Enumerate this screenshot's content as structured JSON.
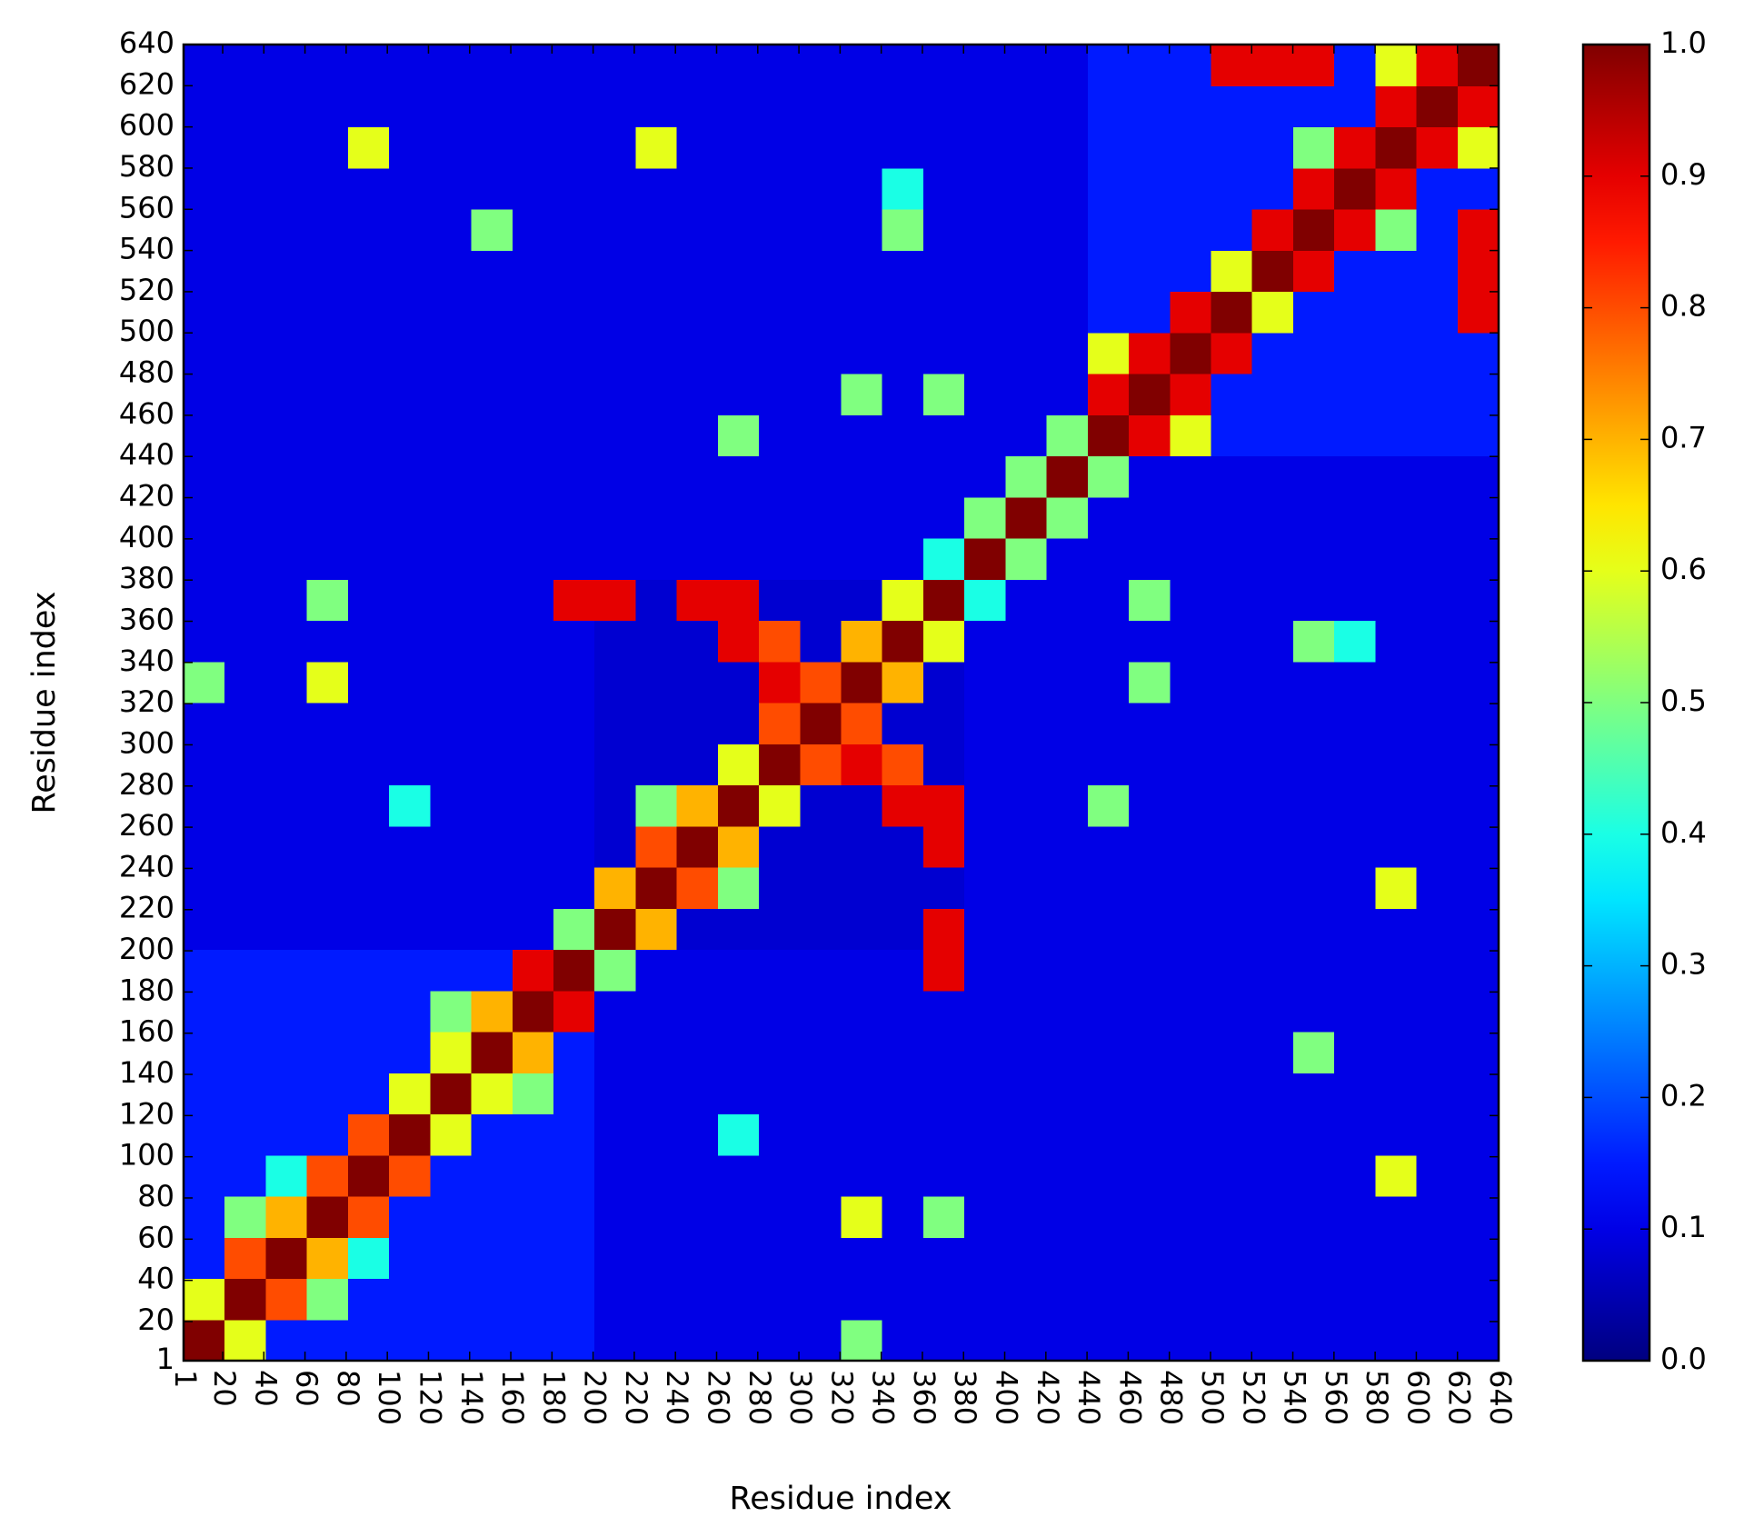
{
  "chart_data": {
    "type": "heatmap",
    "xlabel": "Residue index",
    "ylabel": "Residue index",
    "xlim": [
      1,
      640
    ],
    "ylim": [
      1,
      640
    ],
    "xticks": [
      1,
      20,
      40,
      60,
      80,
      100,
      120,
      140,
      160,
      180,
      200,
      220,
      240,
      260,
      280,
      300,
      320,
      340,
      360,
      380,
      400,
      420,
      440,
      460,
      480,
      500,
      520,
      540,
      560,
      580,
      600,
      620,
      640
    ],
    "yticks": [
      1,
      20,
      40,
      60,
      80,
      100,
      120,
      140,
      160,
      180,
      200,
      220,
      240,
      260,
      280,
      300,
      320,
      340,
      360,
      380,
      400,
      420,
      440,
      460,
      480,
      500,
      520,
      540,
      560,
      580,
      600,
      620,
      640
    ],
    "colormap": "jet",
    "colorbar": {
      "lim": [
        0,
        1
      ],
      "ticks": [
        {
          "value": 0,
          "label": "0.0"
        },
        {
          "value": 0.1,
          "label": "0.1"
        },
        {
          "value": 0.2,
          "label": "0.2"
        },
        {
          "value": 0.3,
          "label": "0.3"
        },
        {
          "value": 0.4,
          "label": "0.4"
        },
        {
          "value": 0.5,
          "label": "0.5"
        },
        {
          "value": 0.6,
          "label": "0.6"
        },
        {
          "value": 0.7,
          "label": "0.7"
        },
        {
          "value": 0.8,
          "label": "0.8"
        },
        {
          "value": 0.9,
          "label": "0.9"
        },
        {
          "value": 1,
          "label": "1.0"
        }
      ]
    },
    "z": [
      [
        1,
        0.6,
        0.15,
        0.15,
        0.15,
        0.15,
        0.15,
        0.15,
        0.15,
        0.15,
        0.1,
        0.1,
        0.1,
        0.1,
        0.1,
        0.1,
        0.5,
        0.1,
        0.1,
        0.1,
        0.1,
        0.1,
        0.1,
        0.1,
        0.1,
        0.1,
        0.1,
        0.1,
        0.1,
        0.1,
        0.1,
        0.1
      ],
      [
        0.6,
        1,
        0.8,
        0.5,
        0.15,
        0.15,
        0.15,
        0.15,
        0.15,
        0.15,
        0.1,
        0.1,
        0.1,
        0.1,
        0.1,
        0.1,
        0.1,
        0.1,
        0.1,
        0.1,
        0.1,
        0.1,
        0.1,
        0.1,
        0.1,
        0.1,
        0.1,
        0.1,
        0.1,
        0.1,
        0.1,
        0.1
      ],
      [
        0.15,
        0.8,
        1,
        0.7,
        0.4,
        0.15,
        0.15,
        0.15,
        0.15,
        0.15,
        0.1,
        0.1,
        0.1,
        0.1,
        0.1,
        0.1,
        0.1,
        0.1,
        0.1,
        0.1,
        0.1,
        0.1,
        0.1,
        0.1,
        0.1,
        0.1,
        0.1,
        0.1,
        0.1,
        0.1,
        0.1,
        0.1
      ],
      [
        0.15,
        0.5,
        0.7,
        1,
        0.8,
        0.15,
        0.15,
        0.15,
        0.15,
        0.15,
        0.1,
        0.1,
        0.1,
        0.1,
        0.1,
        0.1,
        0.6,
        0.1,
        0.5,
        0.1,
        0.1,
        0.1,
        0.1,
        0.1,
        0.1,
        0.1,
        0.1,
        0.1,
        0.1,
        0.1,
        0.1,
        0.1
      ],
      [
        0.15,
        0.15,
        0.4,
        0.8,
        1,
        0.8,
        0.15,
        0.15,
        0.15,
        0.15,
        0.1,
        0.1,
        0.1,
        0.1,
        0.1,
        0.1,
        0.1,
        0.1,
        0.1,
        0.1,
        0.1,
        0.1,
        0.1,
        0.1,
        0.1,
        0.1,
        0.1,
        0.1,
        0.1,
        0.6,
        0.1,
        0.1
      ],
      [
        0.15,
        0.15,
        0.15,
        0.15,
        0.8,
        1,
        0.6,
        0.15,
        0.15,
        0.15,
        0.1,
        0.1,
        0.1,
        0.4,
        0.1,
        0.1,
        0.1,
        0.1,
        0.1,
        0.1,
        0.1,
        0.1,
        0.1,
        0.1,
        0.1,
        0.1,
        0.1,
        0.1,
        0.1,
        0.1,
        0.1,
        0.1
      ],
      [
        0.15,
        0.15,
        0.15,
        0.15,
        0.15,
        0.6,
        1,
        0.6,
        0.5,
        0.15,
        0.1,
        0.1,
        0.1,
        0.1,
        0.1,
        0.1,
        0.1,
        0.1,
        0.1,
        0.1,
        0.1,
        0.1,
        0.1,
        0.1,
        0.1,
        0.1,
        0.1,
        0.1,
        0.1,
        0.1,
        0.1,
        0.1
      ],
      [
        0.15,
        0.15,
        0.15,
        0.15,
        0.15,
        0.15,
        0.6,
        1,
        0.7,
        0.15,
        0.1,
        0.1,
        0.1,
        0.1,
        0.1,
        0.1,
        0.1,
        0.1,
        0.1,
        0.1,
        0.1,
        0.1,
        0.1,
        0.1,
        0.1,
        0.1,
        0.1,
        0.5,
        0.1,
        0.1,
        0.1,
        0.1
      ],
      [
        0.15,
        0.15,
        0.15,
        0.15,
        0.15,
        0.15,
        0.5,
        0.7,
        1,
        0.9,
        0.1,
        0.1,
        0.1,
        0.1,
        0.1,
        0.1,
        0.1,
        0.1,
        0.1,
        0.1,
        0.1,
        0.1,
        0.1,
        0.1,
        0.1,
        0.1,
        0.1,
        0.1,
        0.1,
        0.1,
        0.1,
        0.1
      ],
      [
        0.15,
        0.15,
        0.15,
        0.15,
        0.15,
        0.15,
        0.15,
        0.15,
        0.9,
        1,
        0.5,
        0.1,
        0.1,
        0.1,
        0.1,
        0.1,
        0.1,
        0.1,
        0.9,
        0.1,
        0.1,
        0.1,
        0.1,
        0.1,
        0.1,
        0.1,
        0.1,
        0.1,
        0.1,
        0.1,
        0.1,
        0.1
      ],
      [
        0.1,
        0.1,
        0.1,
        0.1,
        0.1,
        0.1,
        0.1,
        0.1,
        0.1,
        0.5,
        1,
        0.7,
        0.08,
        0.08,
        0.08,
        0.08,
        0.08,
        0.08,
        0.9,
        0.1,
        0.1,
        0.1,
        0.1,
        0.1,
        0.1,
        0.1,
        0.1,
        0.1,
        0.1,
        0.1,
        0.1,
        0.1
      ],
      [
        0.1,
        0.1,
        0.1,
        0.1,
        0.1,
        0.1,
        0.1,
        0.1,
        0.1,
        0.1,
        0.7,
        1,
        0.8,
        0.5,
        0.08,
        0.08,
        0.08,
        0.08,
        0.08,
        0.1,
        0.1,
        0.1,
        0.1,
        0.1,
        0.1,
        0.1,
        0.1,
        0.1,
        0.1,
        0.6,
        0.1,
        0.1
      ],
      [
        0.1,
        0.1,
        0.1,
        0.1,
        0.1,
        0.1,
        0.1,
        0.1,
        0.1,
        0.1,
        0.08,
        0.8,
        1,
        0.7,
        0.08,
        0.08,
        0.08,
        0.08,
        0.9,
        0.1,
        0.1,
        0.1,
        0.1,
        0.1,
        0.1,
        0.1,
        0.1,
        0.1,
        0.1,
        0.1,
        0.1,
        0.1
      ],
      [
        0.1,
        0.1,
        0.1,
        0.1,
        0.1,
        0.4,
        0.1,
        0.1,
        0.1,
        0.1,
        0.08,
        0.5,
        0.7,
        1,
        0.6,
        0.08,
        0.08,
        0.9,
        0.9,
        0.1,
        0.1,
        0.1,
        0.5,
        0.1,
        0.1,
        0.1,
        0.1,
        0.1,
        0.1,
        0.1,
        0.1,
        0.1
      ],
      [
        0.1,
        0.1,
        0.1,
        0.1,
        0.1,
        0.1,
        0.1,
        0.1,
        0.1,
        0.1,
        0.08,
        0.08,
        0.08,
        0.6,
        1,
        0.8,
        0.9,
        0.8,
        0.08,
        0.1,
        0.1,
        0.1,
        0.1,
        0.1,
        0.1,
        0.1,
        0.1,
        0.1,
        0.1,
        0.1,
        0.1,
        0.1
      ],
      [
        0.1,
        0.1,
        0.1,
        0.1,
        0.1,
        0.1,
        0.1,
        0.1,
        0.1,
        0.1,
        0.08,
        0.08,
        0.08,
        0.08,
        0.8,
        1,
        0.8,
        0.08,
        0.08,
        0.1,
        0.1,
        0.1,
        0.1,
        0.1,
        0.1,
        0.1,
        0.1,
        0.1,
        0.1,
        0.1,
        0.1,
        0.1
      ],
      [
        0.5,
        0.1,
        0.1,
        0.6,
        0.1,
        0.1,
        0.1,
        0.1,
        0.1,
        0.1,
        0.08,
        0.08,
        0.08,
        0.08,
        0.9,
        0.8,
        1,
        0.7,
        0.08,
        0.1,
        0.1,
        0.1,
        0.1,
        0.5,
        0.1,
        0.1,
        0.1,
        0.1,
        0.1,
        0.1,
        0.1,
        0.1
      ],
      [
        0.1,
        0.1,
        0.1,
        0.1,
        0.1,
        0.1,
        0.1,
        0.1,
        0.1,
        0.1,
        0.08,
        0.08,
        0.08,
        0.9,
        0.8,
        0.08,
        0.7,
        1,
        0.6,
        0.1,
        0.1,
        0.1,
        0.1,
        0.1,
        0.1,
        0.1,
        0.1,
        0.5,
        0.4,
        0.1,
        0.1,
        0.1
      ],
      [
        0.1,
        0.1,
        0.1,
        0.5,
        0.1,
        0.1,
        0.1,
        0.1,
        0.1,
        0.9,
        0.9,
        0.08,
        0.9,
        0.9,
        0.08,
        0.08,
        0.08,
        0.6,
        1,
        0.4,
        0.1,
        0.1,
        0.1,
        0.5,
        0.1,
        0.1,
        0.1,
        0.1,
        0.1,
        0.1,
        0.1,
        0.1
      ],
      [
        0.1,
        0.1,
        0.1,
        0.1,
        0.1,
        0.1,
        0.1,
        0.1,
        0.1,
        0.1,
        0.1,
        0.1,
        0.1,
        0.1,
        0.1,
        0.1,
        0.1,
        0.1,
        0.4,
        1,
        0.5,
        0.1,
        0.1,
        0.1,
        0.1,
        0.1,
        0.1,
        0.1,
        0.1,
        0.1,
        0.1,
        0.1
      ],
      [
        0.1,
        0.1,
        0.1,
        0.1,
        0.1,
        0.1,
        0.1,
        0.1,
        0.1,
        0.1,
        0.1,
        0.1,
        0.1,
        0.1,
        0.1,
        0.1,
        0.1,
        0.1,
        0.1,
        0.5,
        1,
        0.5,
        0.1,
        0.1,
        0.1,
        0.1,
        0.1,
        0.1,
        0.1,
        0.1,
        0.1,
        0.1
      ],
      [
        0.1,
        0.1,
        0.1,
        0.1,
        0.1,
        0.1,
        0.1,
        0.1,
        0.1,
        0.1,
        0.1,
        0.1,
        0.1,
        0.1,
        0.1,
        0.1,
        0.1,
        0.1,
        0.1,
        0.1,
        0.5,
        1,
        0.5,
        0.1,
        0.1,
        0.1,
        0.1,
        0.1,
        0.1,
        0.1,
        0.1,
        0.1
      ],
      [
        0.1,
        0.1,
        0.1,
        0.1,
        0.1,
        0.1,
        0.1,
        0.1,
        0.1,
        0.1,
        0.1,
        0.1,
        0.1,
        0.5,
        0.1,
        0.1,
        0.1,
        0.1,
        0.1,
        0.1,
        0.1,
        0.5,
        1,
        0.9,
        0.6,
        0.15,
        0.15,
        0.15,
        0.15,
        0.15,
        0.15,
        0.15
      ],
      [
        0.1,
        0.1,
        0.1,
        0.1,
        0.1,
        0.1,
        0.1,
        0.1,
        0.1,
        0.1,
        0.1,
        0.1,
        0.1,
        0.1,
        0.1,
        0.1,
        0.5,
        0.1,
        0.5,
        0.1,
        0.1,
        0.1,
        0.9,
        1,
        0.9,
        0.15,
        0.15,
        0.15,
        0.15,
        0.15,
        0.15,
        0.15
      ],
      [
        0.1,
        0.1,
        0.1,
        0.1,
        0.1,
        0.1,
        0.1,
        0.1,
        0.1,
        0.1,
        0.1,
        0.1,
        0.1,
        0.1,
        0.1,
        0.1,
        0.1,
        0.1,
        0.1,
        0.1,
        0.1,
        0.1,
        0.6,
        0.9,
        1,
        0.9,
        0.15,
        0.15,
        0.15,
        0.15,
        0.15,
        0.15
      ],
      [
        0.1,
        0.1,
        0.1,
        0.1,
        0.1,
        0.1,
        0.1,
        0.1,
        0.1,
        0.1,
        0.1,
        0.1,
        0.1,
        0.1,
        0.1,
        0.1,
        0.1,
        0.1,
        0.1,
        0.1,
        0.1,
        0.1,
        0.15,
        0.15,
        0.9,
        1,
        0.6,
        0.15,
        0.15,
        0.15,
        0.15,
        0.9
      ],
      [
        0.1,
        0.1,
        0.1,
        0.1,
        0.1,
        0.1,
        0.1,
        0.1,
        0.1,
        0.1,
        0.1,
        0.1,
        0.1,
        0.1,
        0.1,
        0.1,
        0.1,
        0.1,
        0.1,
        0.1,
        0.1,
        0.1,
        0.15,
        0.15,
        0.15,
        0.6,
        1,
        0.9,
        0.15,
        0.15,
        0.15,
        0.9
      ],
      [
        0.1,
        0.1,
        0.1,
        0.1,
        0.1,
        0.1,
        0.1,
        0.5,
        0.1,
        0.1,
        0.1,
        0.1,
        0.1,
        0.1,
        0.1,
        0.1,
        0.1,
        0.5,
        0.1,
        0.1,
        0.1,
        0.1,
        0.15,
        0.15,
        0.15,
        0.15,
        0.9,
        1,
        0.9,
        0.5,
        0.15,
        0.9
      ],
      [
        0.1,
        0.1,
        0.1,
        0.1,
        0.1,
        0.1,
        0.1,
        0.1,
        0.1,
        0.1,
        0.1,
        0.1,
        0.1,
        0.1,
        0.1,
        0.1,
        0.1,
        0.4,
        0.1,
        0.1,
        0.1,
        0.1,
        0.15,
        0.15,
        0.15,
        0.15,
        0.15,
        0.9,
        1,
        0.9,
        0.15,
        0.15
      ],
      [
        0.1,
        0.1,
        0.1,
        0.1,
        0.6,
        0.1,
        0.1,
        0.1,
        0.1,
        0.1,
        0.1,
        0.6,
        0.1,
        0.1,
        0.1,
        0.1,
        0.1,
        0.1,
        0.1,
        0.1,
        0.1,
        0.1,
        0.15,
        0.15,
        0.15,
        0.15,
        0.15,
        0.5,
        0.9,
        1,
        0.9,
        0.6
      ],
      [
        0.1,
        0.1,
        0.1,
        0.1,
        0.1,
        0.1,
        0.1,
        0.1,
        0.1,
        0.1,
        0.1,
        0.1,
        0.1,
        0.1,
        0.1,
        0.1,
        0.1,
        0.1,
        0.1,
        0.1,
        0.1,
        0.1,
        0.15,
        0.15,
        0.15,
        0.15,
        0.15,
        0.15,
        0.15,
        0.9,
        1,
        0.9
      ],
      [
        0.1,
        0.1,
        0.1,
        0.1,
        0.1,
        0.1,
        0.1,
        0.1,
        0.1,
        0.1,
        0.1,
        0.1,
        0.1,
        0.1,
        0.1,
        0.1,
        0.1,
        0.1,
        0.1,
        0.1,
        0.1,
        0.1,
        0.15,
        0.15,
        0.15,
        0.9,
        0.9,
        0.9,
        0.15,
        0.6,
        0.9,
        1
      ]
    ]
  }
}
